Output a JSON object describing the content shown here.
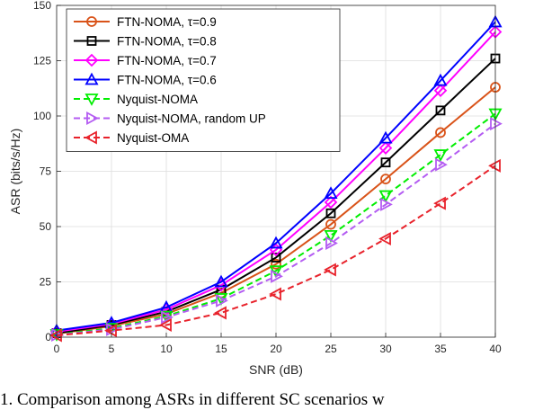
{
  "caption": "1. Comparison among ASRs in different SC scenarios w",
  "chart_data": {
    "type": "line",
    "title": "",
    "xlabel": "SNR (dB)",
    "ylabel": "ASR (bits/s/Hz)",
    "xlim": [
      0,
      40
    ],
    "ylim": [
      0,
      150
    ],
    "xticks": [
      0,
      5,
      10,
      15,
      20,
      25,
      30,
      35,
      40
    ],
    "yticks": [
      0,
      25,
      50,
      75,
      100,
      125,
      150
    ],
    "grid": true,
    "legend_position": "top-left",
    "x": [
      0,
      5,
      10,
      15,
      20,
      25,
      30,
      35,
      40
    ],
    "series": [
      {
        "name": "FTN-NOMA, τ=0.9",
        "color": "#d95319",
        "marker": "circle",
        "dash": false,
        "values": [
          1.5,
          5,
          10.5,
          20,
          33,
          51,
          71.5,
          92.5,
          113
        ]
      },
      {
        "name": "FTN-NOMA, τ=0.8",
        "color": "#000000",
        "marker": "square",
        "dash": false,
        "values": [
          1.8,
          5.5,
          11.5,
          21.5,
          36,
          56,
          79,
          102.5,
          126
        ]
      },
      {
        "name": "FTN-NOMA, τ=0.7",
        "color": "#ff00ff",
        "marker": "diamond",
        "dash": false,
        "values": [
          2.5,
          6,
          12.5,
          23.5,
          39.5,
          61,
          85.5,
          111.5,
          138
        ]
      },
      {
        "name": "FTN-NOMA, τ=0.6",
        "color": "#0000ff",
        "marker": "triangle-up",
        "dash": false,
        "values": [
          3,
          6.5,
          13.5,
          25,
          42.5,
          65,
          90,
          116,
          142.5
        ]
      },
      {
        "name": "Nyquist-NOMA",
        "color": "#00ee00",
        "marker": "triangle-down",
        "dash": true,
        "values": [
          1.2,
          4,
          9.5,
          17.5,
          30,
          46,
          64,
          82.5,
          101
        ]
      },
      {
        "name": "Nyquist-NOMA, random UP",
        "color": "#b45cf2",
        "marker": "triangle-right",
        "dash": true,
        "values": [
          1,
          3.5,
          9,
          16.5,
          27.5,
          42.5,
          60,
          78,
          96.5
        ]
      },
      {
        "name": "Nyquist-OMA",
        "color": "#e8222b",
        "marker": "triangle-left",
        "dash": true,
        "values": [
          0.8,
          3,
          5.5,
          11,
          19.5,
          30.5,
          44.5,
          60.5,
          77.5
        ]
      }
    ]
  }
}
